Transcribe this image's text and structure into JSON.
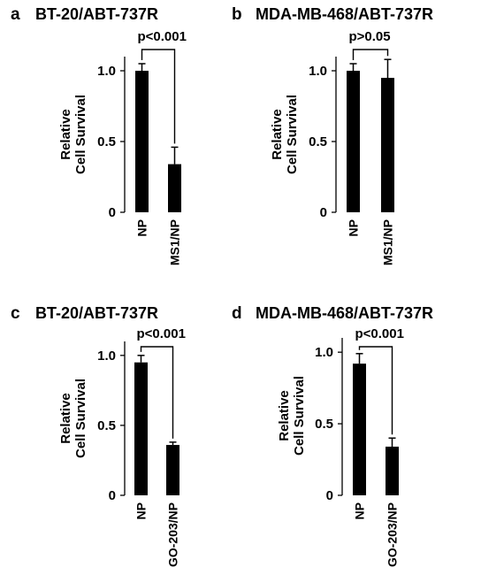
{
  "chart_data": [
    {
      "type": "bar",
      "panel": "a",
      "title": "BT-20/ABT-737R",
      "ylabel": "Relative\nCell Survival",
      "categories": [
        "NP",
        "MS1/NP"
      ],
      "values": [
        1.0,
        0.34
      ],
      "errors": [
        0.05,
        0.12
      ],
      "ylim": [
        0,
        1.1
      ],
      "yticks": [
        "0",
        "0.5",
        "1.0"
      ],
      "significance": "p<0.001",
      "grid": false
    },
    {
      "type": "bar",
      "panel": "b",
      "title": "MDA-MB-468/ABT-737R",
      "ylabel": "Relative\nCell Survival",
      "categories": [
        "NP",
        "MS1/NP"
      ],
      "values": [
        1.0,
        0.95
      ],
      "errors": [
        0.05,
        0.13
      ],
      "ylim": [
        0,
        1.1
      ],
      "yticks": [
        "0",
        "0.5",
        "1.0"
      ],
      "significance": "p>0.05",
      "grid": false
    },
    {
      "type": "bar",
      "panel": "c",
      "title": "BT-20/ABT-737R",
      "ylabel": "Relative\nCell Survival",
      "categories": [
        "NP",
        "GO-203/NP"
      ],
      "values": [
        0.95,
        0.36
      ],
      "errors": [
        0.05,
        0.02
      ],
      "ylim": [
        0,
        1.1
      ],
      "yticks": [
        "0",
        "0.5",
        "1.0"
      ],
      "significance": "p<0.001",
      "grid": false
    },
    {
      "type": "bar",
      "panel": "d",
      "title": "MDA-MB-468/ABT-737R",
      "ylabel": "Relative\nCell Survival",
      "categories": [
        "NP",
        "GO-203/NP"
      ],
      "values": [
        0.92,
        0.34
      ],
      "errors": [
        0.07,
        0.06
      ],
      "ylim": [
        0,
        1.1
      ],
      "yticks": [
        "0",
        "0.5",
        "1.0"
      ],
      "significance": "p<0.001",
      "grid": false
    }
  ]
}
